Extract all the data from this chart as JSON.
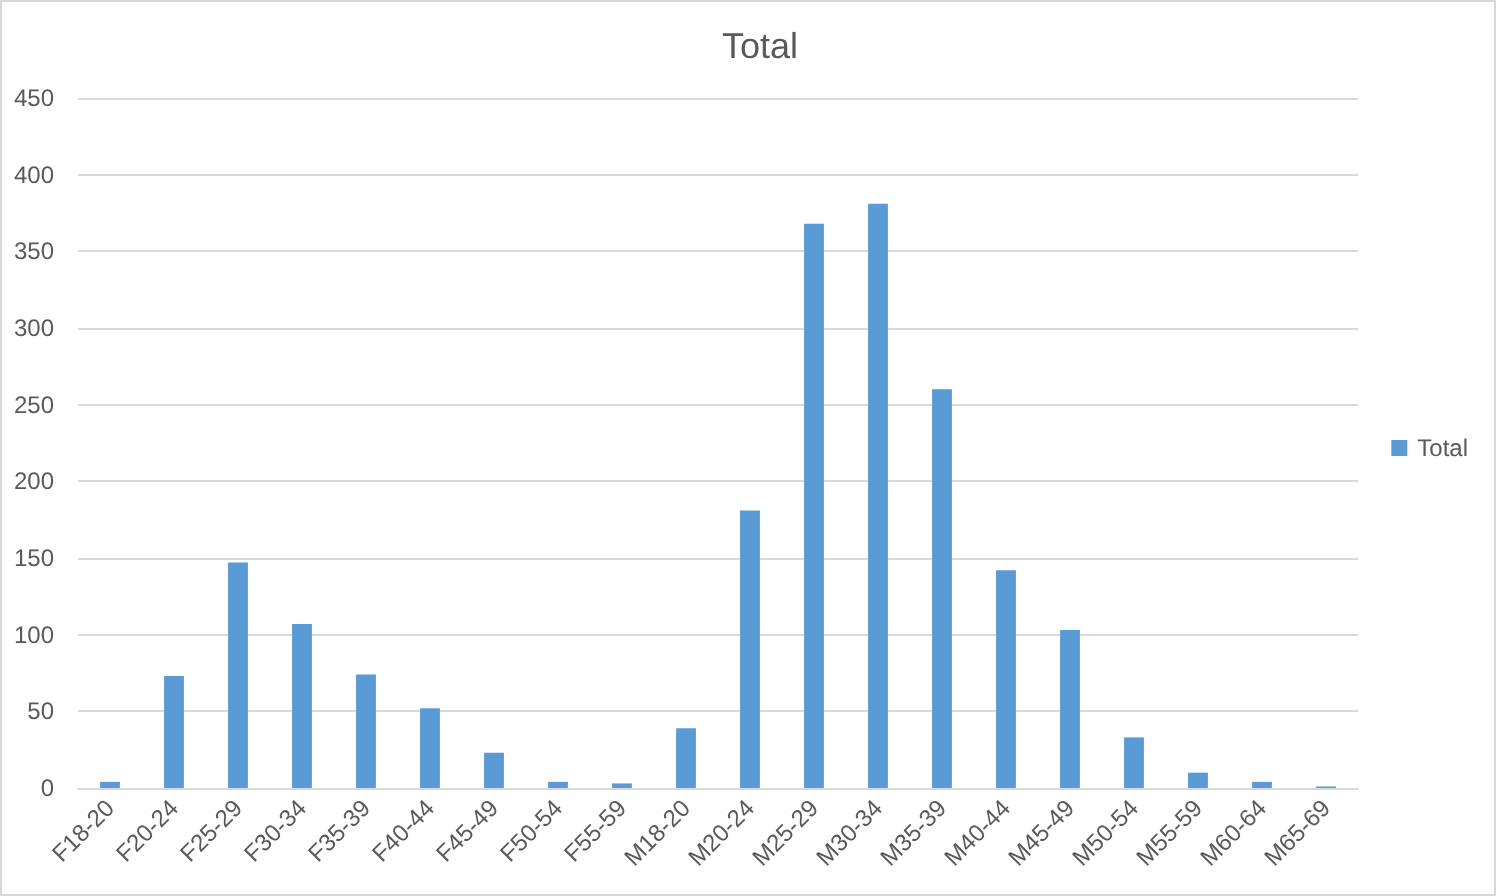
{
  "chart_data": {
    "type": "bar",
    "title": "Total",
    "categories": [
      "F18-20",
      "F20-24",
      "F25-29",
      "F30-34",
      "F35-39",
      "F40-44",
      "F45-49",
      "F50-54",
      "F55-59",
      "M18-20",
      "M20-24",
      "M25-29",
      "M30-34",
      "M35-39",
      "M40-44",
      "M45-49",
      "M50-54",
      "M55-59",
      "M60-64",
      "M65-69"
    ],
    "series": [
      {
        "name": "Total",
        "color": "#5b9bd5",
        "values": [
          4,
          73,
          147,
          107,
          74,
          52,
          23,
          4,
          3,
          39,
          181,
          368,
          381,
          260,
          142,
          103,
          33,
          10,
          4,
          1
        ]
      }
    ],
    "ylim": [
      0,
      450
    ],
    "yticks": [
      0,
      50,
      100,
      150,
      200,
      250,
      300,
      350,
      400,
      450
    ],
    "grid": "y",
    "legend": "right"
  }
}
